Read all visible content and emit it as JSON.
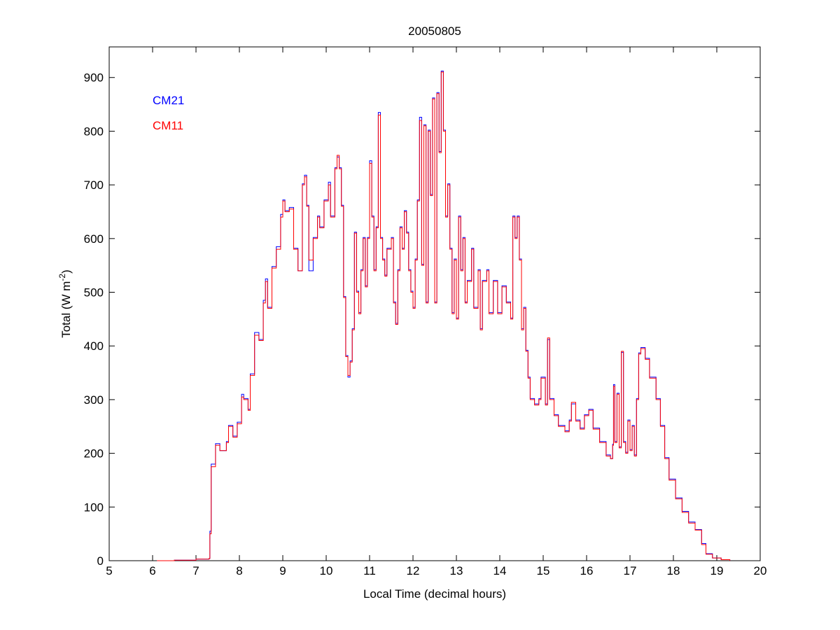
{
  "chart_data": {
    "type": "line",
    "title": "20050805",
    "xlabel": "Local Time (decimal hours)",
    "ylabel": "Total (W m",
    "ylabel_sup": "-2",
    "ylabel_close": ")",
    "xlim": [
      5,
      20
    ],
    "ylim": [
      0,
      957
    ],
    "xticks": [
      5,
      6,
      7,
      8,
      9,
      10,
      11,
      12,
      13,
      14,
      15,
      16,
      17,
      18,
      19,
      20
    ],
    "yticks": [
      0,
      100,
      200,
      300,
      400,
      500,
      600,
      700,
      800,
      900
    ],
    "grid": false,
    "legend_placement": "top-left",
    "x": [
      6.1,
      6.5,
      7.0,
      7.3,
      7.32,
      7.35,
      7.45,
      7.55,
      7.7,
      7.75,
      7.85,
      7.95,
      8.05,
      8.1,
      8.2,
      8.25,
      8.35,
      8.45,
      8.55,
      8.6,
      8.65,
      8.75,
      8.85,
      8.95,
      9.0,
      9.05,
      9.15,
      9.25,
      9.35,
      9.45,
      9.5,
      9.55,
      9.6,
      9.7,
      9.8,
      9.85,
      9.95,
      10.05,
      10.1,
      10.2,
      10.25,
      10.3,
      10.35,
      10.4,
      10.45,
      10.5,
      10.55,
      10.6,
      10.65,
      10.7,
      10.75,
      10.8,
      10.85,
      10.9,
      10.95,
      11.0,
      11.05,
      11.1,
      11.15,
      11.2,
      11.25,
      11.3,
      11.35,
      11.4,
      11.5,
      11.55,
      11.6,
      11.65,
      11.7,
      11.75,
      11.8,
      11.85,
      11.9,
      11.95,
      12.0,
      12.05,
      12.1,
      12.15,
      12.2,
      12.25,
      12.3,
      12.35,
      12.4,
      12.45,
      12.5,
      12.55,
      12.6,
      12.65,
      12.7,
      12.75,
      12.8,
      12.85,
      12.9,
      12.95,
      13.0,
      13.05,
      13.1,
      13.15,
      13.2,
      13.25,
      13.35,
      13.4,
      13.5,
      13.55,
      13.6,
      13.7,
      13.75,
      13.85,
      13.95,
      14.05,
      14.15,
      14.25,
      14.3,
      14.35,
      14.4,
      14.45,
      14.5,
      14.55,
      14.6,
      14.65,
      14.7,
      14.8,
      14.9,
      14.95,
      15.05,
      15.1,
      15.15,
      15.25,
      15.35,
      15.5,
      15.6,
      15.65,
      15.75,
      15.85,
      15.95,
      16.05,
      16.15,
      16.3,
      16.45,
      16.55,
      16.6,
      16.62,
      16.65,
      16.7,
      16.75,
      16.8,
      16.85,
      16.9,
      16.95,
      17.0,
      17.05,
      17.1,
      17.15,
      17.2,
      17.25,
      17.35,
      17.45,
      17.6,
      17.7,
      17.8,
      17.9,
      18.05,
      18.2,
      18.35,
      18.5,
      18.65,
      18.75,
      18.9,
      19.1,
      19.3
    ],
    "series": [
      {
        "name": "CM21",
        "color": "#0000ff",
        "values": [
          0,
          1,
          3,
          4,
          55,
          180,
          218,
          205,
          222,
          252,
          232,
          258,
          310,
          302,
          282,
          348,
          425,
          412,
          485,
          525,
          472,
          548,
          585,
          645,
          672,
          652,
          658,
          582,
          540,
          702,
          718,
          662,
          540,
          602,
          642,
          622,
          672,
          705,
          642,
          732,
          752,
          732,
          662,
          492,
          382,
          342,
          372,
          432,
          612,
          502,
          462,
          542,
          602,
          512,
          602,
          745,
          642,
          542,
          622,
          835,
          602,
          562,
          532,
          582,
          602,
          482,
          442,
          542,
          622,
          582,
          652,
          612,
          542,
          502,
          472,
          562,
          672,
          826,
          552,
          812,
          482,
          802,
          682,
          862,
          482,
          872,
          762,
          912,
          802,
          642,
          702,
          582,
          462,
          562,
          452,
          642,
          542,
          602,
          482,
          522,
          582,
          472,
          542,
          432,
          522,
          542,
          462,
          522,
          462,
          512,
          482,
          452,
          642,
          602,
          642,
          562,
          432,
          472,
          392,
          342,
          302,
          292,
          302,
          342,
          292,
          412,
          302,
          272,
          252,
          242,
          262,
          292,
          262,
          247,
          272,
          282,
          247,
          222,
          197,
          190,
          217,
          328,
          222,
          312,
          212,
          388,
          222,
          202,
          262,
          207,
          252,
          197,
          302,
          387,
          397,
          377,
          342,
          302,
          252,
          192,
          152,
          117,
          92,
          72,
          58,
          32,
          13,
          5,
          2,
          0
        ]
      },
      {
        "name": "CM11",
        "color": "#ff0000",
        "values": [
          0,
          1,
          3,
          4,
          50,
          175,
          215,
          205,
          220,
          250,
          230,
          255,
          305,
          300,
          280,
          345,
          420,
          410,
          480,
          520,
          470,
          545,
          580,
          640,
          670,
          650,
          655,
          580,
          540,
          700,
          715,
          660,
          560,
          600,
          640,
          620,
          670,
          700,
          640,
          730,
          755,
          730,
          660,
          490,
          380,
          345,
          370,
          430,
          610,
          500,
          460,
          540,
          600,
          510,
          600,
          740,
          640,
          540,
          620,
          830,
          600,
          560,
          530,
          580,
          600,
          480,
          440,
          540,
          620,
          580,
          650,
          610,
          540,
          500,
          470,
          560,
          670,
          820,
          550,
          810,
          480,
          800,
          680,
          860,
          480,
          870,
          760,
          910,
          800,
          640,
          700,
          580,
          460,
          560,
          450,
          640,
          540,
          600,
          480,
          520,
          580,
          470,
          540,
          430,
          520,
          540,
          460,
          520,
          460,
          510,
          480,
          450,
          640,
          600,
          640,
          560,
          430,
          470,
          390,
          340,
          300,
          290,
          300,
          340,
          290,
          415,
          300,
          270,
          250,
          240,
          260,
          295,
          260,
          245,
          270,
          280,
          245,
          220,
          195,
          190,
          215,
          325,
          220,
          310,
          210,
          390,
          220,
          200,
          260,
          205,
          250,
          195,
          300,
          385,
          395,
          375,
          340,
          300,
          250,
          190,
          150,
          115,
          90,
          70,
          57,
          30,
          12,
          5,
          2,
          0
        ]
      }
    ]
  }
}
